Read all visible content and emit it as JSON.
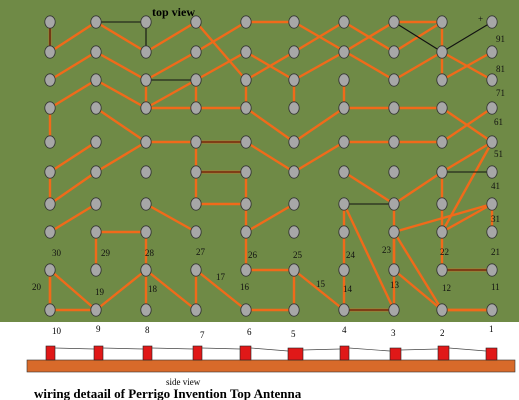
{
  "diagram": {
    "top_title": "top view",
    "plus_sign": "+",
    "side_title": "side view",
    "caption": "wiring  detaail  of Perrigo Invention Top Antenna",
    "colors": {
      "board": "#6f8a46",
      "wire": "#f06a1a",
      "jumper": "#111111",
      "peg": "#a7a7a7",
      "peg_outline": "#333333",
      "base": "#d86a2a",
      "post": "#e01818"
    },
    "pin_labels": [
      "91",
      "81",
      "71",
      "61",
      "51",
      "41",
      "31",
      "21",
      "11",
      "30",
      "29",
      "28",
      "27",
      "26",
      "25",
      "24",
      "23",
      "22",
      "20",
      "19",
      "18",
      "17",
      "16",
      "15",
      "14",
      "13",
      "12"
    ],
    "side_numbers": [
      "10",
      "9",
      "8",
      "7",
      "6",
      "5",
      "4",
      "3",
      "2",
      "1"
    ]
  }
}
